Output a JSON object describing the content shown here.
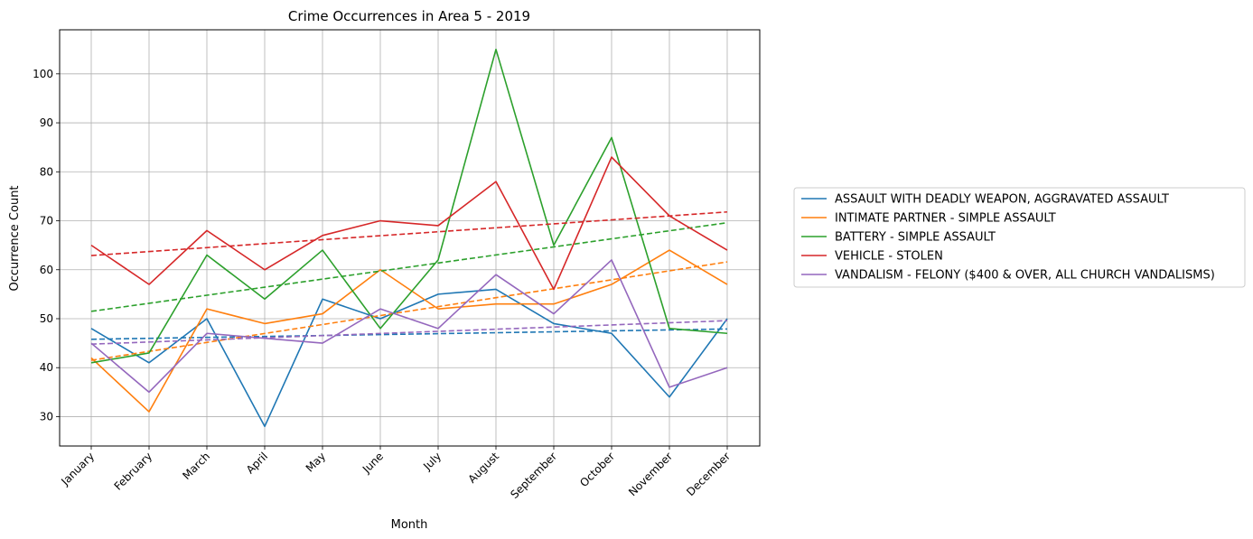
{
  "chart_data": {
    "type": "line",
    "title": "Crime Occurrences in Area 5 - 2019",
    "xlabel": "Month",
    "ylabel": "Occurrence Count",
    "categories": [
      "January",
      "February",
      "March",
      "April",
      "May",
      "June",
      "July",
      "August",
      "September",
      "October",
      "November",
      "December"
    ],
    "ylim": [
      24,
      109
    ],
    "yticks": [
      30,
      40,
      50,
      60,
      70,
      80,
      90,
      100
    ],
    "grid": true,
    "legend_position": "right-outside",
    "series": [
      {
        "name": "ASSAULT WITH DEADLY WEAPON, AGGRAVATED ASSAULT",
        "color": "#1f77b4",
        "values": [
          48,
          41,
          50,
          28,
          54,
          50,
          55,
          56,
          49,
          47,
          34,
          50
        ],
        "trend": [
          45.8,
          47.9
        ]
      },
      {
        "name": "INTIMATE PARTNER - SIMPLE ASSAULT",
        "color": "#ff7f0e",
        "values": [
          42,
          31,
          52,
          49,
          51,
          60,
          52,
          53,
          53,
          57,
          64,
          57
        ],
        "trend": [
          41.5,
          61.6
        ]
      },
      {
        "name": "BATTERY - SIMPLE ASSAULT",
        "color": "#2ca02c",
        "values": [
          41,
          43,
          63,
          54,
          64,
          48,
          62,
          105,
          65,
          87,
          48,
          47
        ],
        "trend": [
          51.5,
          69.6
        ]
      },
      {
        "name": "VEHICLE - STOLEN",
        "color": "#d62728",
        "values": [
          65,
          57,
          68,
          60,
          67,
          70,
          69,
          78,
          56,
          83,
          71,
          64
        ],
        "trend": [
          62.9,
          71.8
        ]
      },
      {
        "name": "VANDALISM - FELONY ($400 & OVER, ALL CHURCH VANDALISMS)",
        "color": "#9467bd",
        "values": [
          45,
          35,
          47,
          46,
          45,
          52,
          48,
          59,
          51,
          62,
          36,
          40
        ],
        "trend": [
          44.8,
          49.6
        ]
      }
    ]
  }
}
